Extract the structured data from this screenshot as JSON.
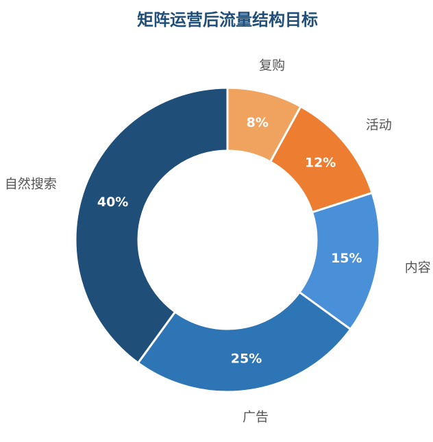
{
  "chart_data": {
    "type": "donut",
    "title": "矩阵运营后流量结构目标",
    "categories": [
      "复购",
      "活动",
      "内容",
      "广告",
      "自然搜索"
    ],
    "values": [
      8,
      12,
      15,
      25,
      40
    ],
    "value_labels": [
      "8%",
      "12%",
      "15%",
      "25%",
      "40%"
    ],
    "colors": [
      "#f0a35e",
      "#ed7d31",
      "#4a90d9",
      "#2e75b6",
      "#1f4e79"
    ]
  }
}
